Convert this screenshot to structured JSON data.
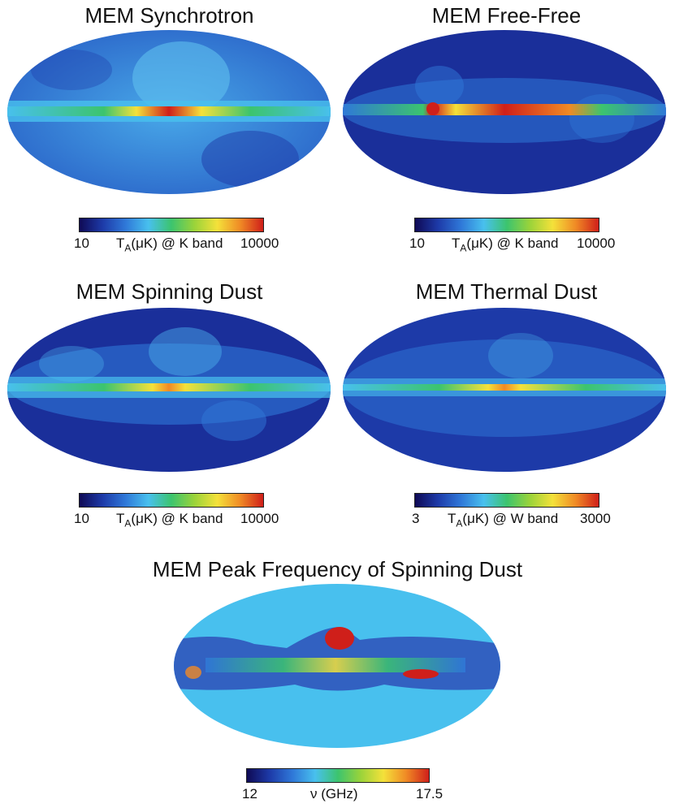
{
  "colors": {
    "colormap": [
      "#0f0a55",
      "#1d3aa8",
      "#2f78d8",
      "#48c0ee",
      "#3cc46e",
      "#9ad33a",
      "#f4e13a",
      "#f08a25",
      "#cf1f1a"
    ],
    "background": "#ffffff"
  },
  "panels": [
    {
      "title": "MEM Synchrotron",
      "cb_min": "10",
      "cb_max": "10000",
      "cb_quantity": "T",
      "cb_sub": "A",
      "cb_units": "(μK) @ K band"
    },
    {
      "title": "MEM Free-Free",
      "cb_min": "10",
      "cb_max": "10000",
      "cb_quantity": "T",
      "cb_sub": "A",
      "cb_units": "(μK) @ K band"
    },
    {
      "title": "MEM Spinning Dust",
      "cb_min": "10",
      "cb_max": "10000",
      "cb_quantity": "T",
      "cb_sub": "A",
      "cb_units": "(μK) @ K band"
    },
    {
      "title": "MEM Thermal Dust",
      "cb_min": "3",
      "cb_max": "3000",
      "cb_quantity": "T",
      "cb_sub": "A",
      "cb_units": "(μK) @ W band"
    },
    {
      "title": "MEM Peak Frequency of Spinning Dust",
      "cb_min": "12",
      "cb_max": "17.5",
      "cb_label": "ν (GHz)"
    }
  ]
}
